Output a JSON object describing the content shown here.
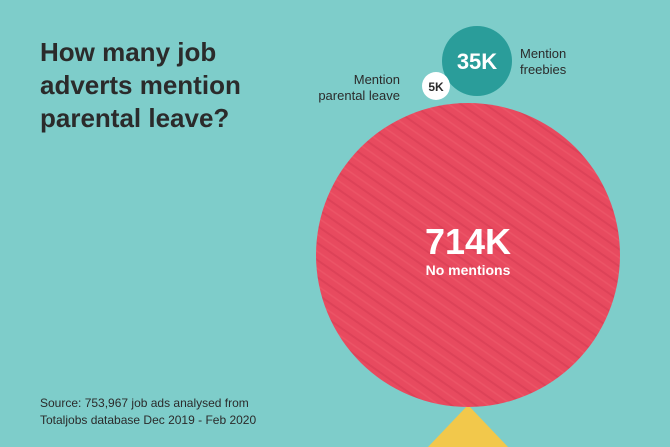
{
  "title": "How many job adverts mention parental leave?",
  "source_line1": "Source: 753,967 job ads analysed from",
  "source_line2": "Totaljobs database Dec 2019 - Feb 2020",
  "chart_data": {
    "type": "bubble",
    "title": "How many job adverts mention parental leave?",
    "unit": "job ads",
    "items": [
      {
        "label": "No mentions",
        "value": 714000,
        "display": "714K",
        "color": "#e84a5f"
      },
      {
        "label_lines": [
          "Mention",
          "freebies"
        ],
        "value": 35000,
        "display": "35K",
        "color": "#2a9d9a"
      },
      {
        "label_lines": [
          "Mention",
          "parental leave"
        ],
        "value": 5000,
        "display": "5K",
        "color": "#ffffff"
      }
    ],
    "source": "Source: 753,967 job ads analysed from Totaljobs database Dec 2019 - Feb 2020"
  },
  "colors": {
    "background": "#7ecdca",
    "no_mentions": "#e84a5f",
    "freebies": "#2a9d9a",
    "parental_leave": "#ffffff",
    "base_triangle": "#f2c84b"
  }
}
